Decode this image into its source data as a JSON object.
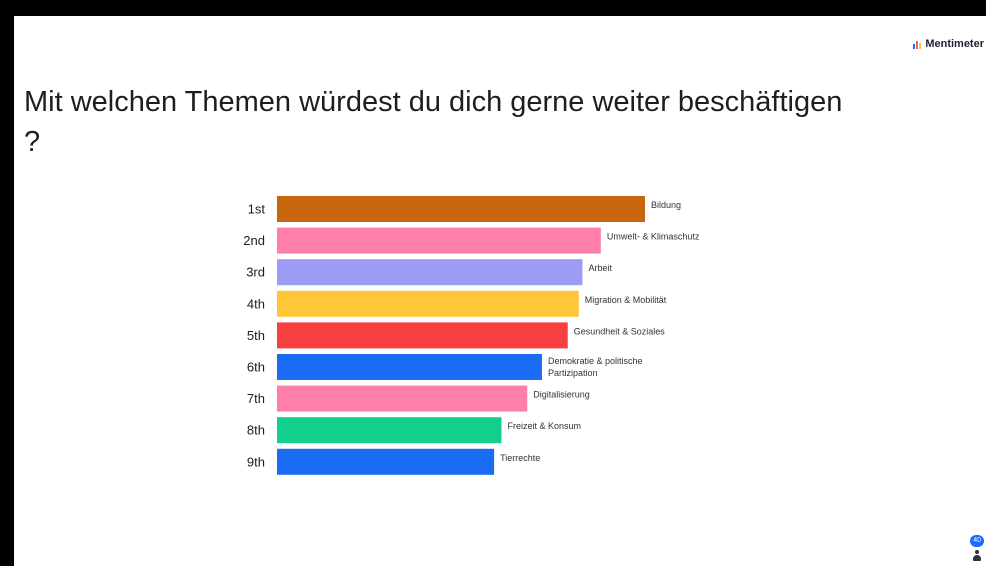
{
  "brand": {
    "name": "Mentimeter"
  },
  "question": {
    "title": "Mit welchen Themen würdest du dich gerne weiter beschäftigen ?"
  },
  "participants": {
    "count": "40"
  },
  "chart_data": {
    "type": "bar",
    "orientation": "horizontal",
    "title": "Mit welchen Themen würdest du dich gerne weiter beschäftigen ?",
    "ranks": [
      "1st",
      "2nd",
      "3rd",
      "4th",
      "5th",
      "6th",
      "7th",
      "8th",
      "9th"
    ],
    "categories": [
      "Bildung",
      "Umwelt- & Klimaschutz",
      "Arbeit",
      "Migration & Mobilität",
      "Gesundheit & Soziales",
      "Demokratie & politische Partizipation",
      "Digitalisierung",
      "Freizeit & Konsum",
      "Tierrechte"
    ],
    "values": [
      100,
      88,
      83,
      82,
      79,
      72,
      68,
      61,
      59
    ],
    "colors": [
      "#c8650f",
      "#ff7fab",
      "#9c9cf5",
      "#ffc737",
      "#f6403f",
      "#1a6cf5",
      "#ff7fab",
      "#10d08c",
      "#1a6cf5"
    ],
    "grid": false,
    "legend": "none"
  }
}
